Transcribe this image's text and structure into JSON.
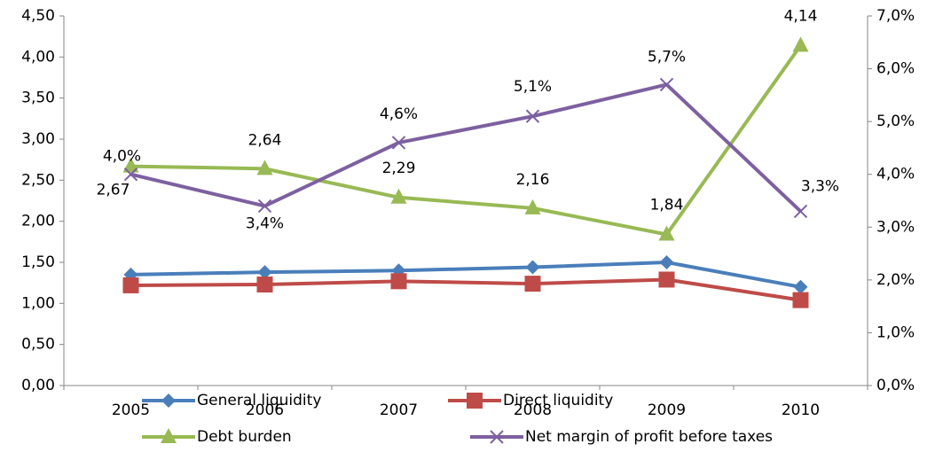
{
  "chart_data": {
    "type": "line",
    "categories": [
      "2005",
      "2006",
      "2007",
      "2008",
      "2009",
      "2010"
    ],
    "series": [
      {
        "name": "General liquidity",
        "color": "#4a7ebb",
        "marker": "diamond",
        "values": [
          1.35,
          1.38,
          1.4,
          1.44,
          1.5,
          1.2
        ]
      },
      {
        "name": "Direct liquidity",
        "color": "#be4b48",
        "marker": "square",
        "values": [
          1.22,
          1.23,
          1.27,
          1.24,
          1.29,
          1.04
        ]
      },
      {
        "name": "Debt burden",
        "color": "#98b954",
        "marker": "triangle",
        "values": [
          2.67,
          2.64,
          2.29,
          2.16,
          1.84,
          4.14
        ],
        "value_labels": [
          "2,67",
          "2,64",
          "2,29",
          "2,16",
          "1,84",
          "4,14"
        ]
      },
      {
        "name": "Net margin of profit before taxes",
        "color": "#7d60a0",
        "marker": "x",
        "axis": "y2",
        "values": [
          4.0,
          3.4,
          4.6,
          5.1,
          5.7,
          3.3
        ],
        "value_labels": [
          "4,0%",
          "3,4%",
          "4,6%",
          "5,1%",
          "5,7%",
          "3,3%"
        ]
      }
    ],
    "ylim": [
      0,
      4.5
    ],
    "yticks": [
      {
        "value": 0,
        "label": "0,00"
      },
      {
        "value": 0.5,
        "label": "0,50"
      },
      {
        "value": 1,
        "label": "1,00"
      },
      {
        "value": 1.5,
        "label": "1,50"
      },
      {
        "value": 2,
        "label": "2,00"
      },
      {
        "value": 2.5,
        "label": "2,50"
      },
      {
        "value": 3,
        "label": "3,00"
      },
      {
        "value": 3.5,
        "label": "3,50"
      },
      {
        "value": 4,
        "label": "4,00"
      },
      {
        "value": 4.5,
        "label": "4,50"
      }
    ],
    "y2lim": [
      0,
      7
    ],
    "y2ticks": [
      {
        "value": 0,
        "label": "0,0%"
      },
      {
        "value": 1,
        "label": "1,0%"
      },
      {
        "value": 2,
        "label": "2,0%"
      },
      {
        "value": 3,
        "label": "3,0%"
      },
      {
        "value": 4,
        "label": "4,0%"
      },
      {
        "value": 5,
        "label": "5,0%"
      },
      {
        "value": 6,
        "label": "6,0%"
      },
      {
        "value": 7,
        "label": "7,0%"
      }
    ],
    "grid": false,
    "legend": "bottom"
  }
}
